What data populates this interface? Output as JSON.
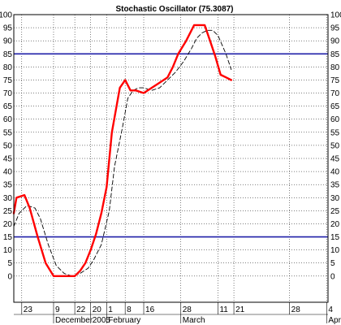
{
  "chart_data": {
    "type": "line",
    "title": "Stochastic Oscillator (75.3087)",
    "ylim": [
      -10,
      100
    ],
    "yticks": [
      0,
      5,
      10,
      15,
      20,
      25,
      30,
      35,
      40,
      45,
      50,
      55,
      60,
      65,
      70,
      75,
      80,
      85,
      90,
      95,
      100
    ],
    "y_tick_labels": [
      "0",
      "5",
      "10",
      "15",
      "20",
      "25",
      "30",
      "35",
      "40",
      "45",
      "50",
      "55",
      "60",
      "65",
      "70",
      "75",
      "80",
      "85",
      "90",
      "95",
      "100"
    ],
    "grid": true,
    "reference_lines": [
      85,
      15
    ],
    "x_axis": {
      "day_ticks": [
        {
          "pos": 3,
          "label": "23"
        },
        {
          "pos": 15,
          "label": "9"
        },
        {
          "pos": 23,
          "label": "22"
        },
        {
          "pos": 29,
          "label": "20"
        },
        {
          "pos": 35,
          "label": "1"
        },
        {
          "pos": 42,
          "label": "8"
        },
        {
          "pos": 49,
          "label": "16"
        },
        {
          "pos": 63,
          "label": "28"
        },
        {
          "pos": 77,
          "label": "11"
        },
        {
          "pos": 83,
          "label": "21"
        },
        {
          "pos": 104,
          "label": "28"
        },
        {
          "pos": 118,
          "label": "4"
        }
      ],
      "period_labels": [
        {
          "pos": 15,
          "label": "December"
        },
        {
          "pos": 29,
          "label": "2005"
        },
        {
          "pos": 35,
          "label": "February"
        },
        {
          "pos": 63,
          "label": "March"
        },
        {
          "pos": 118,
          "label": "Apr"
        }
      ]
    },
    "x_range": [
      0,
      118.5
    ],
    "series": [
      {
        "style": "solid",
        "color": "#ff0000",
        "x": [
          0,
          1,
          4,
          6,
          9,
          12,
          15,
          18,
          20,
          22,
          23,
          25,
          27,
          29,
          31,
          33,
          35,
          37,
          40,
          42,
          44,
          46,
          49,
          52,
          55,
          58,
          60,
          62,
          65,
          68,
          70,
          72,
          74,
          76,
          78,
          80,
          82
        ],
        "y": [
          24,
          30,
          31,
          26,
          15,
          5,
          0,
          0,
          0,
          0,
          0,
          2,
          5,
          10,
          16,
          24,
          34,
          55,
          72,
          75,
          71,
          71,
          70,
          72,
          74,
          76,
          80,
          85,
          90,
          96,
          96,
          96,
          90,
          84,
          77,
          76,
          75
        ]
      },
      {
        "style": "dashed",
        "color": "#000000",
        "x": [
          0,
          2,
          5,
          8,
          10,
          13,
          16,
          19,
          22,
          25,
          28,
          30,
          33,
          36,
          38,
          41,
          43,
          45,
          47,
          49,
          52,
          55,
          58,
          61,
          64,
          67,
          69,
          71,
          73,
          75,
          77,
          80,
          82
        ],
        "y": [
          19,
          24,
          27,
          26,
          22,
          12,
          4,
          1,
          0,
          1,
          3,
          6,
          12,
          25,
          42,
          57,
          68,
          71,
          72,
          72,
          71,
          72,
          75,
          78,
          82,
          87,
          91,
          93,
          94,
          94,
          92,
          85,
          79
        ]
      }
    ]
  }
}
